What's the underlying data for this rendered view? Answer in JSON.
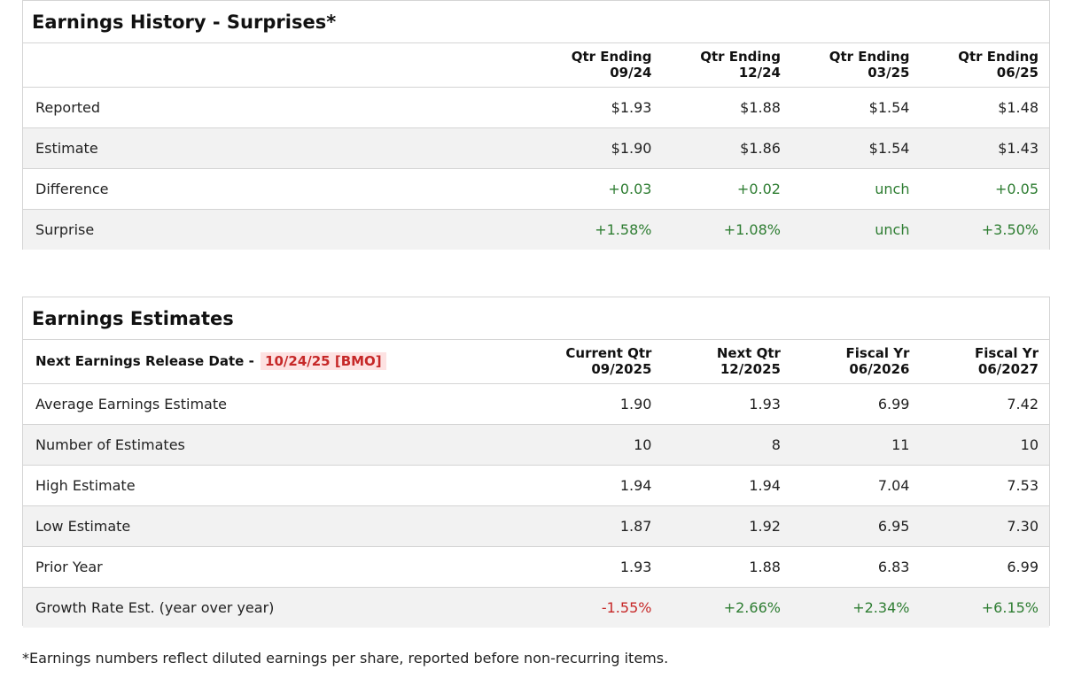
{
  "history": {
    "title": "Earnings History - Surprises*",
    "columns": [
      {
        "line1": "Qtr Ending",
        "line2": "09/24"
      },
      {
        "line1": "Qtr Ending",
        "line2": "12/24"
      },
      {
        "line1": "Qtr Ending",
        "line2": "03/25"
      },
      {
        "line1": "Qtr Ending",
        "line2": "06/25"
      }
    ],
    "rows": [
      {
        "label": "Reported",
        "values": [
          "$1.93",
          "$1.88",
          "$1.54",
          "$1.48"
        ]
      },
      {
        "label": "Estimate",
        "values": [
          "$1.90",
          "$1.86",
          "$1.54",
          "$1.43"
        ]
      },
      {
        "label": "Difference",
        "values": [
          "+0.03",
          "+0.02",
          "unch",
          "+0.05"
        ]
      },
      {
        "label": "Surprise",
        "values": [
          "+1.58%",
          "+1.08%",
          "unch",
          "+3.50%"
        ]
      }
    ]
  },
  "estimates": {
    "title": "Earnings Estimates",
    "release_label": "Next Earnings Release Date -",
    "release_date": "10/24/25 [BMO]",
    "columns": [
      {
        "line1": "Current Qtr",
        "line2": "09/2025"
      },
      {
        "line1": "Next Qtr",
        "line2": "12/2025"
      },
      {
        "line1": "Fiscal Yr",
        "line2": "06/2026"
      },
      {
        "line1": "Fiscal Yr",
        "line2": "06/2027"
      }
    ],
    "rows": [
      {
        "label": "Average Earnings Estimate",
        "values": [
          "1.90",
          "1.93",
          "6.99",
          "7.42"
        ]
      },
      {
        "label": "Number of Estimates",
        "values": [
          "10",
          "8",
          "11",
          "10"
        ]
      },
      {
        "label": "High Estimate",
        "values": [
          "1.94",
          "1.94",
          "7.04",
          "7.53"
        ]
      },
      {
        "label": "Low Estimate",
        "values": [
          "1.87",
          "1.92",
          "6.95",
          "7.30"
        ]
      },
      {
        "label": "Prior Year",
        "values": [
          "1.93",
          "1.88",
          "6.83",
          "6.99"
        ]
      },
      {
        "label": "Growth Rate Est. (year over year)",
        "values": [
          "-1.55%",
          "+2.66%",
          "+2.34%",
          "+6.15%"
        ]
      }
    ]
  },
  "colors": {
    "positive": "#2e7d32",
    "negative": "#c62828",
    "stripe": "#f2f2f2",
    "border": "#d4d4d4"
  },
  "footnote": "*Earnings numbers reflect diluted earnings per share, reported before non-recurring items."
}
